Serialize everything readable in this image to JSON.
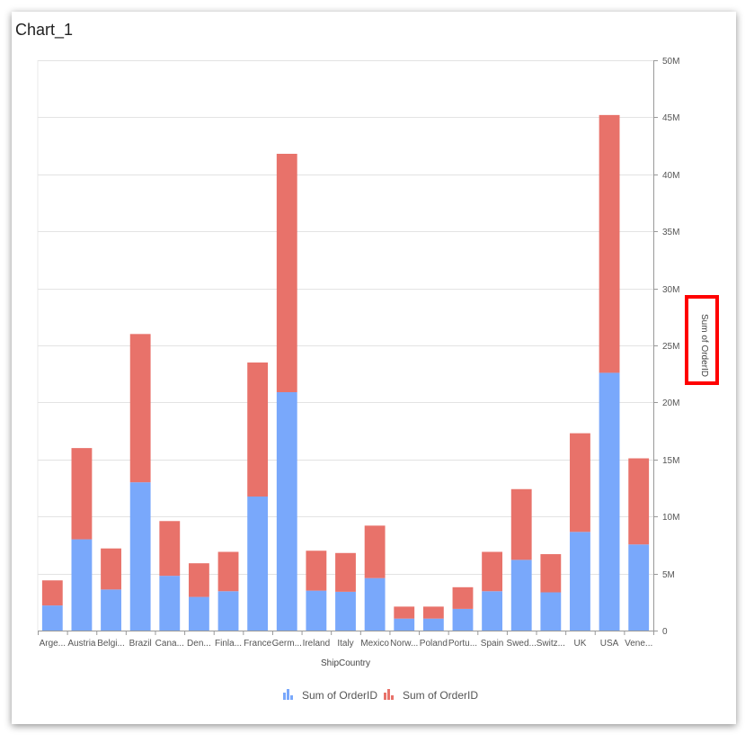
{
  "chart_title": "Chart_1",
  "colors": {
    "series1": "#79a8fb",
    "series2": "#e8726a",
    "grid": "#e3e3e3",
    "axis": "#999999",
    "highlight": "#ff0000"
  },
  "chart_data": {
    "type": "bar",
    "stacked": true,
    "title": "Chart_1",
    "xlabel": "ShipCountry",
    "ylabel": "Sum of OrderID",
    "ylim": [
      0,
      50000000
    ],
    "y_ticks": [
      0,
      5000000,
      10000000,
      15000000,
      20000000,
      25000000,
      30000000,
      35000000,
      40000000,
      45000000,
      50000000
    ],
    "y_tick_labels": [
      "0",
      "5M",
      "10M",
      "15M",
      "20M",
      "25M",
      "30M",
      "35M",
      "40M",
      "45M",
      "50M"
    ],
    "y_axis_position": "right",
    "grid": true,
    "legend_position": "bottom",
    "categories": [
      "Arge...",
      "Austria",
      "Belgi...",
      "Brazil",
      "Cana...",
      "Den...",
      "Finla...",
      "France",
      "Germ...",
      "Ireland",
      "Italy",
      "Mexico",
      "Norw...",
      "Poland",
      "Portu...",
      "Spain",
      "Swed...",
      "Switz...",
      "UK",
      "USA",
      "Vene..."
    ],
    "series": [
      {
        "name": "Sum of OrderID",
        "values": [
          2200000,
          8000000,
          3600000,
          13000000,
          4800000,
          2950000,
          3450000,
          11750000,
          20900000,
          3500000,
          3400000,
          4600000,
          1050000,
          1050000,
          1900000,
          3450000,
          6200000,
          3350000,
          8650000,
          22600000,
          7550000
        ]
      },
      {
        "name": "Sum of OrderID",
        "values": [
          2200000,
          8000000,
          3600000,
          13000000,
          4800000,
          2950000,
          3450000,
          11750000,
          20900000,
          3500000,
          3400000,
          4600000,
          1050000,
          1050000,
          1900000,
          3450000,
          6200000,
          3350000,
          8650000,
          22600000,
          7550000
        ]
      }
    ]
  }
}
